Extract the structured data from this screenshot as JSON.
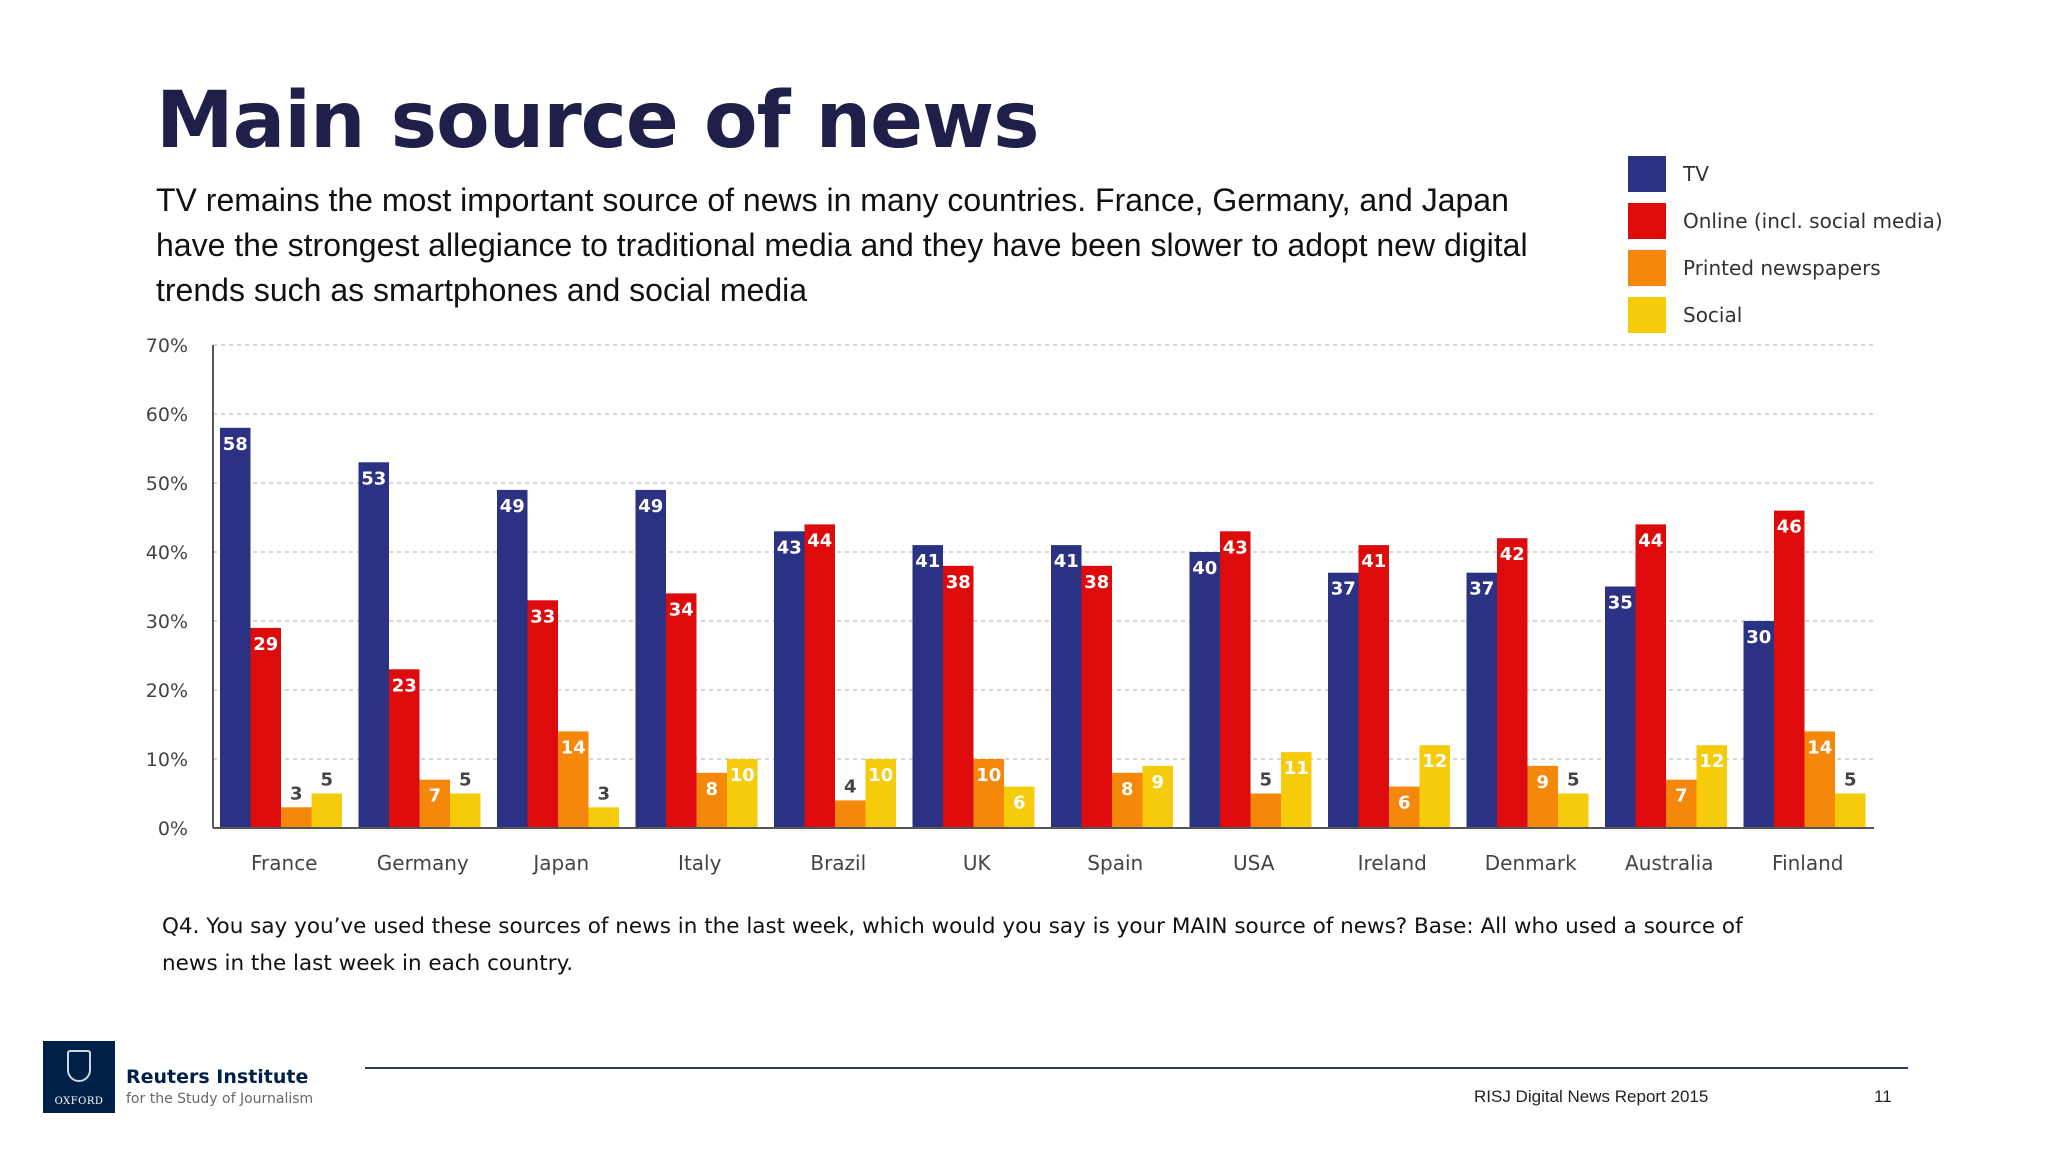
{
  "slide": {
    "title": "Main source of news",
    "subtitle": "TV remains the most important source of news in many countries. France, Germany, and Japan have the strongest allegiance to traditional media and they have been slower to adopt new digital trends such as smartphones and social media",
    "note": "Q4. You say you’ve used these sources of news in the last week, which would you say is your MAIN source of news? Base: All who used a source of news in the last week in each country.",
    "footer": "RISJ Digital News Report 2015",
    "page_number": "11",
    "brand_line1": "Reuters Institute",
    "brand_line2": "for the Study of Journalism",
    "logo_text": "OXFORD"
  },
  "chart_data": {
    "type": "bar",
    "categories": [
      "France",
      "Germany",
      "Japan",
      "Italy",
      "Brazil",
      "UK",
      "Spain",
      "USA",
      "Ireland",
      "Denmark",
      "Australia",
      "Finland"
    ],
    "series": [
      {
        "name": "TV",
        "color": "#2b3183",
        "values": [
          58,
          53,
          49,
          49,
          43,
          41,
          41,
          40,
          37,
          37,
          35,
          30
        ]
      },
      {
        "name": "Online (incl. social media)",
        "color": "#dd0b0b",
        "values": [
          29,
          23,
          33,
          34,
          44,
          38,
          38,
          43,
          41,
          42,
          44,
          46
        ]
      },
      {
        "name": "Printed newspapers",
        "color": "#f5870a",
        "values": [
          3,
          7,
          14,
          8,
          4,
          10,
          8,
          5,
          6,
          9,
          7,
          14
        ]
      },
      {
        "name": "Social",
        "color": "#f5cb0a",
        "values": [
          5,
          5,
          3,
          10,
          10,
          6,
          9,
          11,
          12,
          5,
          12,
          5
        ]
      }
    ],
    "y_ticks": [
      "0%",
      "10%",
      "20%",
      "30%",
      "40%",
      "50%",
      "60%",
      "70%"
    ],
    "ylim": [
      0,
      70
    ],
    "grid": true,
    "legend_position": "top-right"
  }
}
